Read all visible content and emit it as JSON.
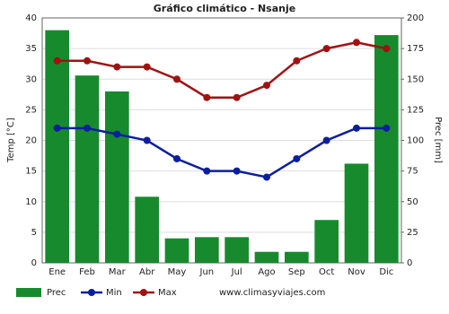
{
  "chart_data": {
    "type": "bar",
    "title": "Gráfico climático - Nsanje",
    "y_label": "Temp [°C]",
    "y2_label": "Prec [mm]",
    "categories": [
      "Ene",
      "Feb",
      "Mar",
      "Abr",
      "May",
      "Jun",
      "Jul",
      "Ago",
      "Sep",
      "Oct",
      "Nov",
      "Dic"
    ],
    "series": [
      {
        "name": "Prec",
        "type": "bar",
        "axis": "y2",
        "color": "#178a2e",
        "values": [
          190,
          153,
          140,
          54,
          20,
          21,
          21,
          9,
          9,
          35,
          81,
          186
        ]
      },
      {
        "name": "Min",
        "type": "line",
        "color": "#0b1f9e",
        "values": [
          22,
          22,
          21,
          20,
          17,
          15,
          15,
          14,
          17,
          20,
          22,
          22
        ]
      },
      {
        "name": "Max",
        "type": "line",
        "color": "#a01212",
        "values": [
          33,
          33,
          32,
          32,
          30,
          27,
          27,
          29,
          33,
          35,
          36,
          35
        ]
      }
    ],
    "ylim": [
      0,
      40
    ],
    "yticks": [
      0,
      5,
      10,
      15,
      20,
      25,
      30,
      35,
      40
    ],
    "y2lim": [
      0,
      200
    ],
    "y2ticks": [
      0,
      25,
      50,
      75,
      100,
      125,
      150,
      175,
      200
    ],
    "grid": true,
    "source": "www.climasyviajes.com"
  }
}
